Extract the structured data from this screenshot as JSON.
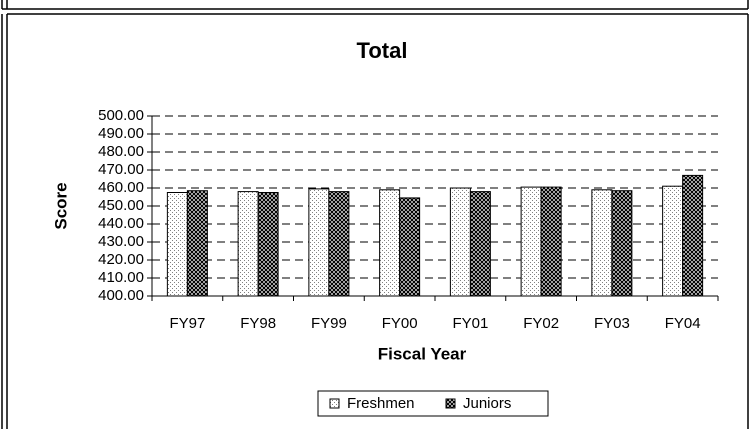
{
  "chart_data": {
    "type": "bar",
    "title": "Total",
    "x_label": "Fiscal Year",
    "y_label": "Score",
    "categories": [
      "FY97",
      "FY98",
      "FY99",
      "FY00",
      "FY01",
      "FY02",
      "FY03",
      "FY04"
    ],
    "series": [
      {
        "name": "Freshmen",
        "color": "#808080",
        "values": [
          457.5,
          458,
          459.5,
          459,
          460,
          460.5,
          459,
          461
        ]
      },
      {
        "name": "Juniors",
        "color": "#000000",
        "values": [
          458.5,
          457.5,
          458,
          454.5,
          458,
          460.5,
          458.5,
          467
        ]
      }
    ],
    "ylim": [
      400,
      500
    ],
    "yticks": [
      {
        "value": 400,
        "label": "400.00"
      },
      {
        "value": 410,
        "label": "410.00"
      },
      {
        "value": 420,
        "label": "420.00"
      },
      {
        "value": 430,
        "label": "430.00"
      },
      {
        "value": 440,
        "label": "440.00"
      },
      {
        "value": 450,
        "label": "450.00"
      },
      {
        "value": 460,
        "label": "460.00"
      },
      {
        "value": 470,
        "label": "470.00"
      },
      {
        "value": 480,
        "label": "480.00"
      },
      {
        "value": 490,
        "label": "490.00"
      },
      {
        "value": 500,
        "label": "500.00"
      }
    ],
    "grid": true,
    "legend": "bottom"
  }
}
